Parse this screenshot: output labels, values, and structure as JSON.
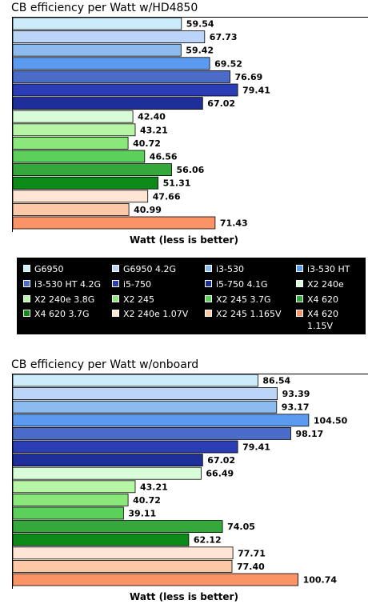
{
  "series_names": [
    "G6950",
    "G6950 4.2G",
    "i3-530",
    "i3-530 HT",
    "i3-530 HT 4.2G",
    "i5-750",
    "i5-750 4.1G",
    "X2 240e",
    "X2 240e 3.8G",
    "X2 245",
    "X2 245 3.7G",
    "X4 620",
    "X4 620 3.7G",
    "X2 240e 1.07V",
    "X2 245 1.165V",
    "X4 620 1.15V"
  ],
  "colors": [
    "#ccebfb",
    "#bcd4f8",
    "#8cbcef",
    "#5a9af0",
    "#4a6cc8",
    "#2a3db5",
    "#1e2f9a",
    "#d8fcd8",
    "#b6f5a6",
    "#8ae87b",
    "#5bd05b",
    "#34a83a",
    "#0c8a18",
    "#ffe6d4",
    "#fcc8a6",
    "#fa9466"
  ],
  "chart_data": [
    {
      "type": "bar",
      "title": "CB efficiency per Watt w/HD4850",
      "xlabel": "Watt (less is better)",
      "series": [
        {
          "name": "G6950",
          "value": 59.54,
          "label": "59.54"
        },
        {
          "name": "G6950 4.2G",
          "value": 67.73,
          "label": "67.73"
        },
        {
          "name": "i3-530",
          "value": 59.42,
          "label": "59.42"
        },
        {
          "name": "i3-530 HT",
          "value": 69.52,
          "label": "69.52"
        },
        {
          "name": "i3-530 HT 4.2G",
          "value": 76.69,
          "label": "76.69"
        },
        {
          "name": "i5-750",
          "value": 79.41,
          "label": "79.41"
        },
        {
          "name": "i5-750 4.1G",
          "value": 67.02,
          "label": "67.02"
        },
        {
          "name": "X2 240e",
          "value": 42.4,
          "label": "42.40"
        },
        {
          "name": "X2 240e 3.8G",
          "value": 43.21,
          "label": "43.21"
        },
        {
          "name": "X2 245",
          "value": 40.72,
          "label": "40.72"
        },
        {
          "name": "X2 245 3.7G",
          "value": 46.56,
          "label": "46.56"
        },
        {
          "name": "X4 620",
          "value": 56.06,
          "label": "56.06"
        },
        {
          "name": "X4 620 3.7G",
          "value": 51.31,
          "label": "51.31"
        },
        {
          "name": "X2 240e 1.07V",
          "value": 47.66,
          "label": "47.66"
        },
        {
          "name": "X2 245 1.165V",
          "value": 40.99,
          "label": "40.99"
        },
        {
          "name": "X4 620 1.15V",
          "value": 71.43,
          "label": "71.43"
        }
      ]
    },
    {
      "type": "bar",
      "title": "CB efficiency per Watt w/onboard",
      "xlabel": "Watt (less is better)",
      "series": [
        {
          "name": "G6950",
          "value": 86.54,
          "label": "86.54"
        },
        {
          "name": "G6950 4.2G",
          "value": 93.39,
          "label": "93.39"
        },
        {
          "name": "i3-530",
          "value": 93.17,
          "label": "93.17"
        },
        {
          "name": "i3-530 HT",
          "value": 104.5,
          "label": "104.50"
        },
        {
          "name": "i3-530 HT 4.2G",
          "value": 98.17,
          "label": "98.17"
        },
        {
          "name": "i5-750",
          "value": 79.41,
          "label": "79.41"
        },
        {
          "name": "i5-750 4.1G",
          "value": 67.02,
          "label": "67.02"
        },
        {
          "name": "X2 240e",
          "value": 66.49,
          "label": "66.49"
        },
        {
          "name": "X2 240e 3.8G",
          "value": 43.21,
          "label": "43.21"
        },
        {
          "name": "X2 245",
          "value": 40.72,
          "label": "40.72"
        },
        {
          "name": "X2 245 3.7G",
          "value": 39.11,
          "label": "39.11"
        },
        {
          "name": "X4 620",
          "value": 74.05,
          "label": "74.05"
        },
        {
          "name": "X4 620 3.7G",
          "value": 62.12,
          "label": "62.12"
        },
        {
          "name": "X2 240e 1.07V",
          "value": 77.71,
          "label": "77.71"
        },
        {
          "name": "X2 245 1.165V",
          "value": 77.4,
          "label": "77.40"
        },
        {
          "name": "X4 620 1.15V",
          "value": 100.74,
          "label": "100.74"
        }
      ]
    }
  ]
}
